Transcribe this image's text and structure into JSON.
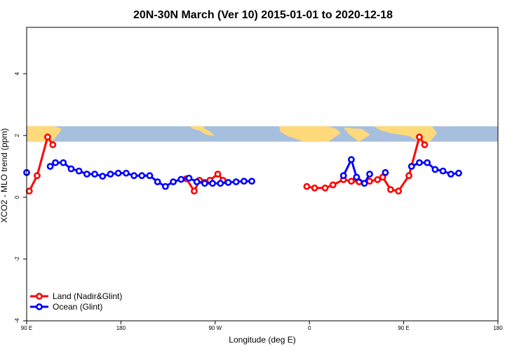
{
  "chart_data": {
    "type": "line",
    "title": "20N-30N March (Ver 10)   2015-01-01 to 2020-12-18",
    "xlabel": "Longitude (deg E)",
    "ylabel": "XCO2 - MLO trend (ppm)",
    "xlim": [
      90,
      450
    ],
    "ylim": [
      -4,
      5.5
    ],
    "x_ticks": [
      {
        "value": 90,
        "label": "90 E"
      },
      {
        "value": 180,
        "label": "180"
      },
      {
        "value": 270,
        "label": "90 W"
      },
      {
        "value": 360,
        "label": "0"
      },
      {
        "value": 450,
        "label": "90 E"
      },
      {
        "value": 540,
        "label": "180"
      }
    ],
    "y_ticks": [
      {
        "value": -4,
        "label": "-4"
      },
      {
        "value": -2,
        "label": "-2"
      },
      {
        "value": 0,
        "label": "0"
      },
      {
        "value": 2,
        "label": "2"
      },
      {
        "value": 4,
        "label": "4"
      }
    ],
    "map_strip": {
      "ymin": 1.8,
      "ymax": 2.3,
      "ocean_color": "#a7bfdf",
      "land_color": "#ffd97a"
    },
    "legend_position": "bottom-left",
    "series": [
      {
        "name": "Land (Nadir&Glint)",
        "color": "#ff0000",
        "segments": [
          [
            [
              92.5,
              0.2
            ],
            [
              100,
              0.7
            ],
            [
              110,
              1.95
            ],
            [
              115,
              1.7
            ]
          ],
          [
            [
              242.5,
              0.6
            ],
            [
              250,
              0.2
            ],
            [
              255,
              0.55
            ],
            [
              265,
              0.55
            ],
            [
              272.5,
              0.75
            ],
            [
              277.5,
              0.55
            ]
          ],
          [
            [
              357.5,
              0.35
            ],
            [
              365,
              0.3
            ],
            [
              375,
              0.3
            ],
            [
              382.5,
              0.4
            ],
            [
              392.5,
              0.57
            ],
            [
              400,
              0.52
            ],
            [
              407.5,
              0.5
            ],
            [
              417.5,
              0.52
            ],
            [
              425,
              0.57
            ],
            [
              430,
              0.65
            ],
            [
              437.5,
              0.25
            ],
            [
              445,
              0.2
            ],
            [
              455,
              0.7
            ],
            [
              465,
              1.95
            ],
            [
              470,
              1.7
            ]
          ]
        ]
      },
      {
        "name": "Ocean (Glint)",
        "color": "#0000ff",
        "segments": [
          [
            [
              90,
              0.8
            ]
          ],
          [
            [
              112.5,
              1.0
            ],
            [
              117.5,
              1.12
            ],
            [
              125,
              1.12
            ],
            [
              132.5,
              0.92
            ],
            [
              140,
              0.85
            ],
            [
              147.5,
              0.75
            ],
            [
              155,
              0.75
            ],
            [
              162.5,
              0.68
            ],
            [
              170,
              0.75
            ],
            [
              177.5,
              0.78
            ],
            [
              185,
              0.78
            ],
            [
              192.5,
              0.7
            ],
            [
              200,
              0.7
            ],
            [
              207.5,
              0.7
            ],
            [
              215,
              0.5
            ],
            [
              222.5,
              0.35
            ],
            [
              230,
              0.5
            ],
            [
              237.5,
              0.58
            ],
            [
              245,
              0.62
            ],
            [
              252.5,
              0.5
            ],
            [
              260,
              0.45
            ],
            [
              267.5,
              0.45
            ],
            [
              275,
              0.45
            ],
            [
              282.5,
              0.48
            ],
            [
              290,
              0.5
            ],
            [
              297.5,
              0.52
            ],
            [
              305,
              0.52
            ]
          ],
          [
            [
              392.5,
              0.7
            ],
            [
              400,
              1.22
            ],
            [
              405,
              0.65
            ],
            [
              412.5,
              0.45
            ],
            [
              417.5,
              0.75
            ]
          ],
          [
            [
              432.5,
              0.8
            ]
          ],
          [
            [
              457.5,
              1.0
            ],
            [
              465,
              1.12
            ],
            [
              472.5,
              1.12
            ],
            [
              480,
              0.9
            ],
            [
              487.5,
              0.85
            ],
            [
              495,
              0.75
            ],
            [
              502.5,
              0.78
            ]
          ]
        ]
      }
    ]
  }
}
